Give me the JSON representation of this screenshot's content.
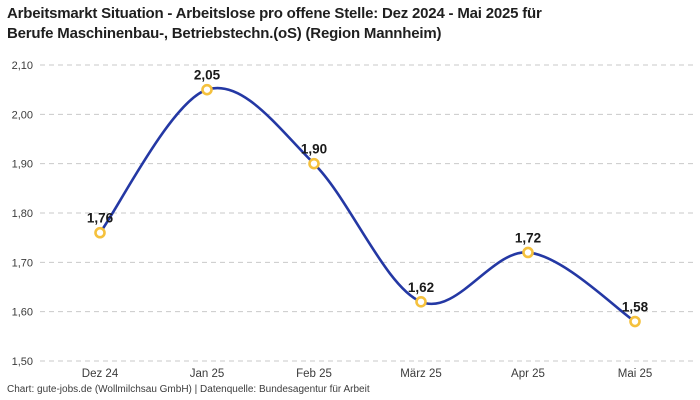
{
  "header": {
    "title_line1": "Arbeitsmarkt Situation - Arbeitslose pro offene Stelle: Dez 2024 - Mai 2025 für",
    "title_line2": "Berufe Maschinenbau-, Betriebstechn.(oS) (Region Mannheim)"
  },
  "footer": {
    "credit": "Chart: gute-jobs.de (Wollmilchsau GmbH) | Datenquelle: Bundesagentur für Arbeit"
  },
  "colors": {
    "background": "#ffffff",
    "line": "#2438a4",
    "marker_ring": "#f5c13d",
    "marker_fill": "#ffffff",
    "grid": "#c9c9c9",
    "title_text": "#1f1f1f",
    "tick_text": "#3b3b3b",
    "point_label_text": "#1a1a1a"
  },
  "chart_data": {
    "type": "line",
    "title": "Arbeitsmarkt Situation - Arbeitslose pro offene Stelle: Dez 2024 - Mai 2025 für Berufe Maschinenbau-, Betriebstechn.(oS) (Region Mannheim)",
    "categories": [
      "Dez 24",
      "Jan 25",
      "Feb 25",
      "März 25",
      "Apr 25",
      "Mai 25"
    ],
    "values": [
      1.76,
      2.05,
      1.9,
      1.62,
      1.72,
      1.58
    ],
    "point_labels": [
      "1,76",
      "2,05",
      "1,90",
      "1,62",
      "1,72",
      "1,58"
    ],
    "y_ticks": [
      2.1,
      2.0,
      1.9,
      1.8,
      1.7,
      1.6,
      1.5
    ],
    "y_tick_labels": [
      "2,10",
      "2,00",
      "1,90",
      "1,80",
      "1,70",
      "1,60",
      "1,50"
    ],
    "ylim": [
      1.5,
      2.1
    ],
    "xlabel": "",
    "ylabel": "",
    "grid": "horizontal-dashed",
    "legend": "none",
    "curve": "smooth"
  }
}
